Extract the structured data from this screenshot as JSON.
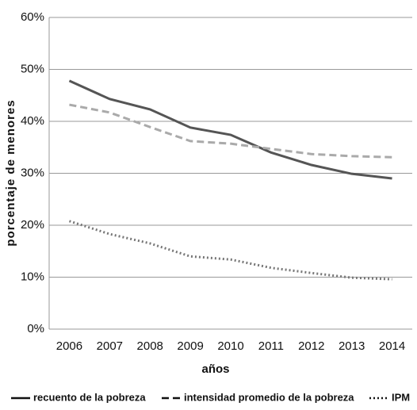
{
  "chart_data": {
    "type": "line",
    "x_label": "años",
    "y_label": "porcentaje de menores",
    "categories": [
      "2006",
      "2007",
      "2008",
      "2009",
      "2010",
      "2011",
      "2012",
      "2013",
      "2014"
    ],
    "series": [
      {
        "name": "recuento de la pobreza",
        "color": "#555555",
        "dash": "solid",
        "values": [
          47.8,
          44.3,
          42.3,
          38.8,
          37.4,
          34.0,
          31.6,
          29.9,
          29.0
        ]
      },
      {
        "name": "intensidad promedio de la pobreza",
        "color": "#aaaaaa",
        "dash": "dashed",
        "values": [
          43.2,
          41.7,
          38.9,
          36.2,
          35.7,
          34.7,
          33.7,
          33.3,
          33.1
        ]
      },
      {
        "name": "IPM",
        "color": "#777777",
        "dash": "dotted",
        "values": [
          20.8,
          18.3,
          16.5,
          14.0,
          13.4,
          11.8,
          10.8,
          9.9,
          9.6
        ]
      }
    ],
    "ylim": [
      0,
      60
    ],
    "yticks": [
      {
        "value": 0,
        "label": "0%"
      },
      {
        "value": 10,
        "label": "10%"
      },
      {
        "value": 20,
        "label": "20%"
      },
      {
        "value": 30,
        "label": "30%"
      },
      {
        "value": 40,
        "label": "40%"
      },
      {
        "value": 50,
        "label": "50%"
      },
      {
        "value": 60,
        "label": "60%"
      }
    ],
    "grid": true
  }
}
